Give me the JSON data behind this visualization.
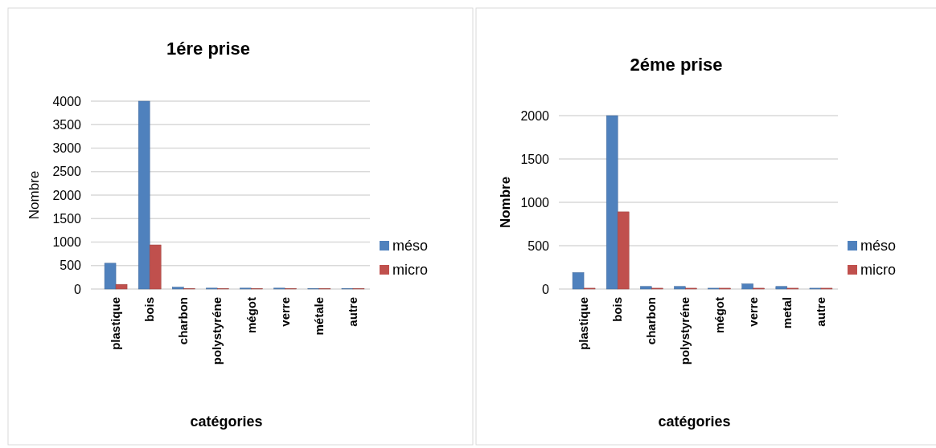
{
  "chart_data": [
    {
      "type": "bar",
      "title": "1ére prise",
      "xlabel": "catégories",
      "ylabel": "Nombre",
      "categories": [
        "plastique",
        "bois",
        "charbon",
        "polystyréne",
        "mégot",
        "verre",
        "métale",
        "autre"
      ],
      "series": [
        {
          "name": "méso",
          "color": "#4f81bd",
          "values": [
            550,
            4000,
            40,
            20,
            20,
            20,
            10,
            10
          ]
        },
        {
          "name": "micro",
          "color": "#c0504d",
          "values": [
            100,
            940,
            10,
            10,
            10,
            10,
            10,
            10
          ]
        }
      ],
      "ylim": [
        0,
        4000
      ],
      "yticks": [
        0,
        500,
        1000,
        1500,
        2000,
        2500,
        3000,
        3500,
        4000
      ],
      "grid": "y",
      "legend": "right"
    },
    {
      "type": "bar",
      "title": "2éme prise",
      "xlabel": "catégories",
      "ylabel": "Nombre",
      "categories": [
        "plastique",
        "bois",
        "charbon",
        "polystyréne",
        "mégot",
        "verre",
        "metal",
        "autre"
      ],
      "series": [
        {
          "name": "méso",
          "color": "#4f81bd",
          "values": [
            190,
            2000,
            30,
            30,
            10,
            60,
            30,
            10
          ]
        },
        {
          "name": "micro",
          "color": "#c0504d",
          "values": [
            10,
            890,
            10,
            10,
            10,
            10,
            10,
            10
          ]
        }
      ],
      "ylim": [
        0,
        2000
      ],
      "yticks": [
        0,
        500,
        1000,
        1500,
        2000
      ],
      "grid": "y",
      "legend": "right"
    }
  ]
}
